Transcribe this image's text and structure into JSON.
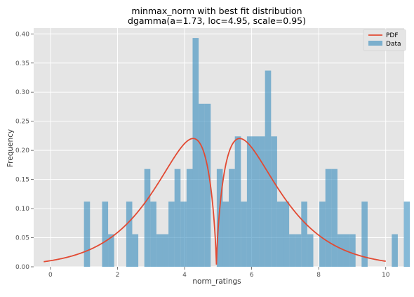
{
  "chart_data": {
    "type": "bar",
    "title": "minmax_norm with best fit distribution",
    "subtitle": "dgamma(a=1.73, loc=4.95, scale=0.95)",
    "xlabel": "norm_ratings",
    "ylabel": "Frequency",
    "xlim": [
      -0.5,
      10.55
    ],
    "ylim": [
      0,
      0.41
    ],
    "xticks": [
      0,
      2,
      4,
      6,
      8,
      10
    ],
    "yticks": [
      0.0,
      0.05,
      0.1,
      0.15,
      0.2,
      0.25,
      0.3,
      0.35,
      0.4
    ],
    "xtick_labels": [
      "0",
      "2",
      "4",
      "6",
      "8",
      "10"
    ],
    "ytick_labels": [
      "0.00",
      "0.05",
      "0.10",
      "0.15",
      "0.20",
      "0.25",
      "0.30",
      "0.35",
      "0.40"
    ],
    "grid": true,
    "legend": {
      "position": "top-right",
      "entries": [
        "PDF",
        "Data"
      ]
    },
    "bins": {
      "start": 1.0,
      "width": 0.18,
      "values": [
        0.112,
        0,
        0,
        0.112,
        0.056,
        0,
        0,
        0.112,
        0.056,
        0,
        0.168,
        0.112,
        0.056,
        0.056,
        0.112,
        0.168,
        0.112,
        0.168,
        0.393,
        0.28,
        0.28,
        0,
        0.168,
        0.112,
        0.168,
        0.224,
        0.112,
        0.224,
        0.224,
        0.224,
        0.337,
        0.224,
        0.112,
        0.112,
        0.056,
        0.056,
        0.112,
        0.056,
        0,
        0.112,
        0.168,
        0.168,
        0.056,
        0.056,
        0.056,
        0,
        0.112,
        0,
        0,
        0,
        0,
        0.056,
        0,
        0.112
      ]
    },
    "series": [
      {
        "name": "PDF",
        "type": "line",
        "distribution": "dgamma",
        "a": 1.73,
        "loc": 4.95,
        "scale": 0.95,
        "x_range": [
          -0.2,
          10.0
        ]
      },
      {
        "name": "Data",
        "type": "histogram"
      }
    ],
    "colors": {
      "pdf": "#e24a33",
      "data": "#348abd",
      "background": "#e5e5e5",
      "grid": "#ffffff"
    }
  }
}
